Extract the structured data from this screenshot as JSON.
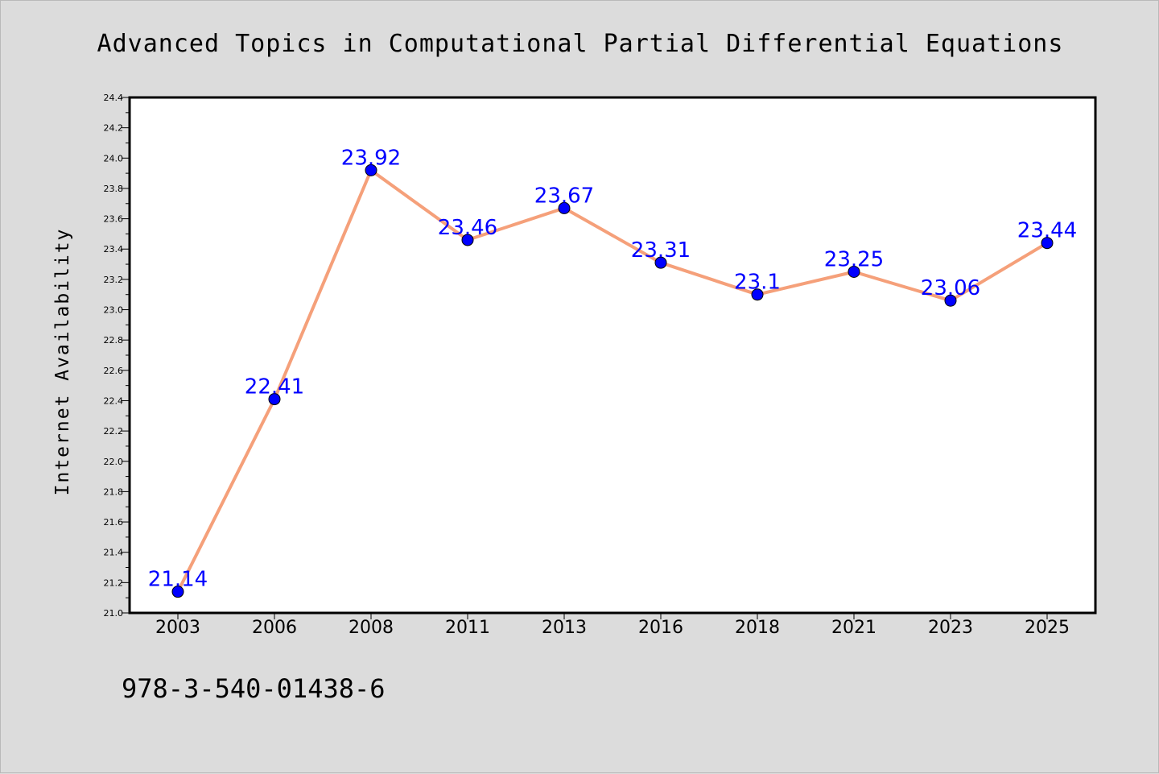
{
  "chart_data": {
    "type": "line",
    "title": "Advanced Topics in Computational Partial Differential Equations",
    "xlabel": "",
    "ylabel": "Internet Availability",
    "categories": [
      "2003",
      "2006",
      "2008",
      "2011",
      "2013",
      "2016",
      "2018",
      "2021",
      "2023",
      "2025"
    ],
    "series": [
      {
        "values": [
          21.14,
          22.41,
          23.92,
          23.46,
          23.67,
          23.31,
          23.1,
          23.25,
          23.06,
          23.44
        ]
      }
    ],
    "data_labels": [
      "21.14",
      "22.41",
      "23.92",
      "23.46",
      "23.67",
      "23.31",
      "23.1",
      "23.25",
      "23.06",
      "23.44"
    ],
    "ylim": [
      21.0,
      24.4
    ],
    "yticks": [
      21.0,
      21.2,
      21.4,
      21.6,
      21.8,
      22.0,
      22.2,
      22.4,
      22.6,
      22.8,
      23.0,
      23.2,
      23.4,
      23.6,
      23.8,
      24.0,
      24.2,
      24.4
    ],
    "ytick_labels": [
      "21.0",
      "21.2",
      "21.4",
      "21.6",
      "21.8",
      "22.0",
      "22.2",
      "22.4",
      "22.6",
      "22.8",
      "23.0",
      "23.2",
      "23.4",
      "23.6",
      "23.8",
      "24.0",
      "24.2",
      "24.4"
    ],
    "grid": false,
    "legend": "none"
  },
  "footer_text": "978-3-540-01438-6",
  "colors": {
    "background": "#dcdcdc",
    "plot_background": "#ffffff",
    "line": "#f5a07a",
    "marker_fill": "#0000ff",
    "marker_edge": "#000000",
    "data_label": "#0000ff"
  }
}
